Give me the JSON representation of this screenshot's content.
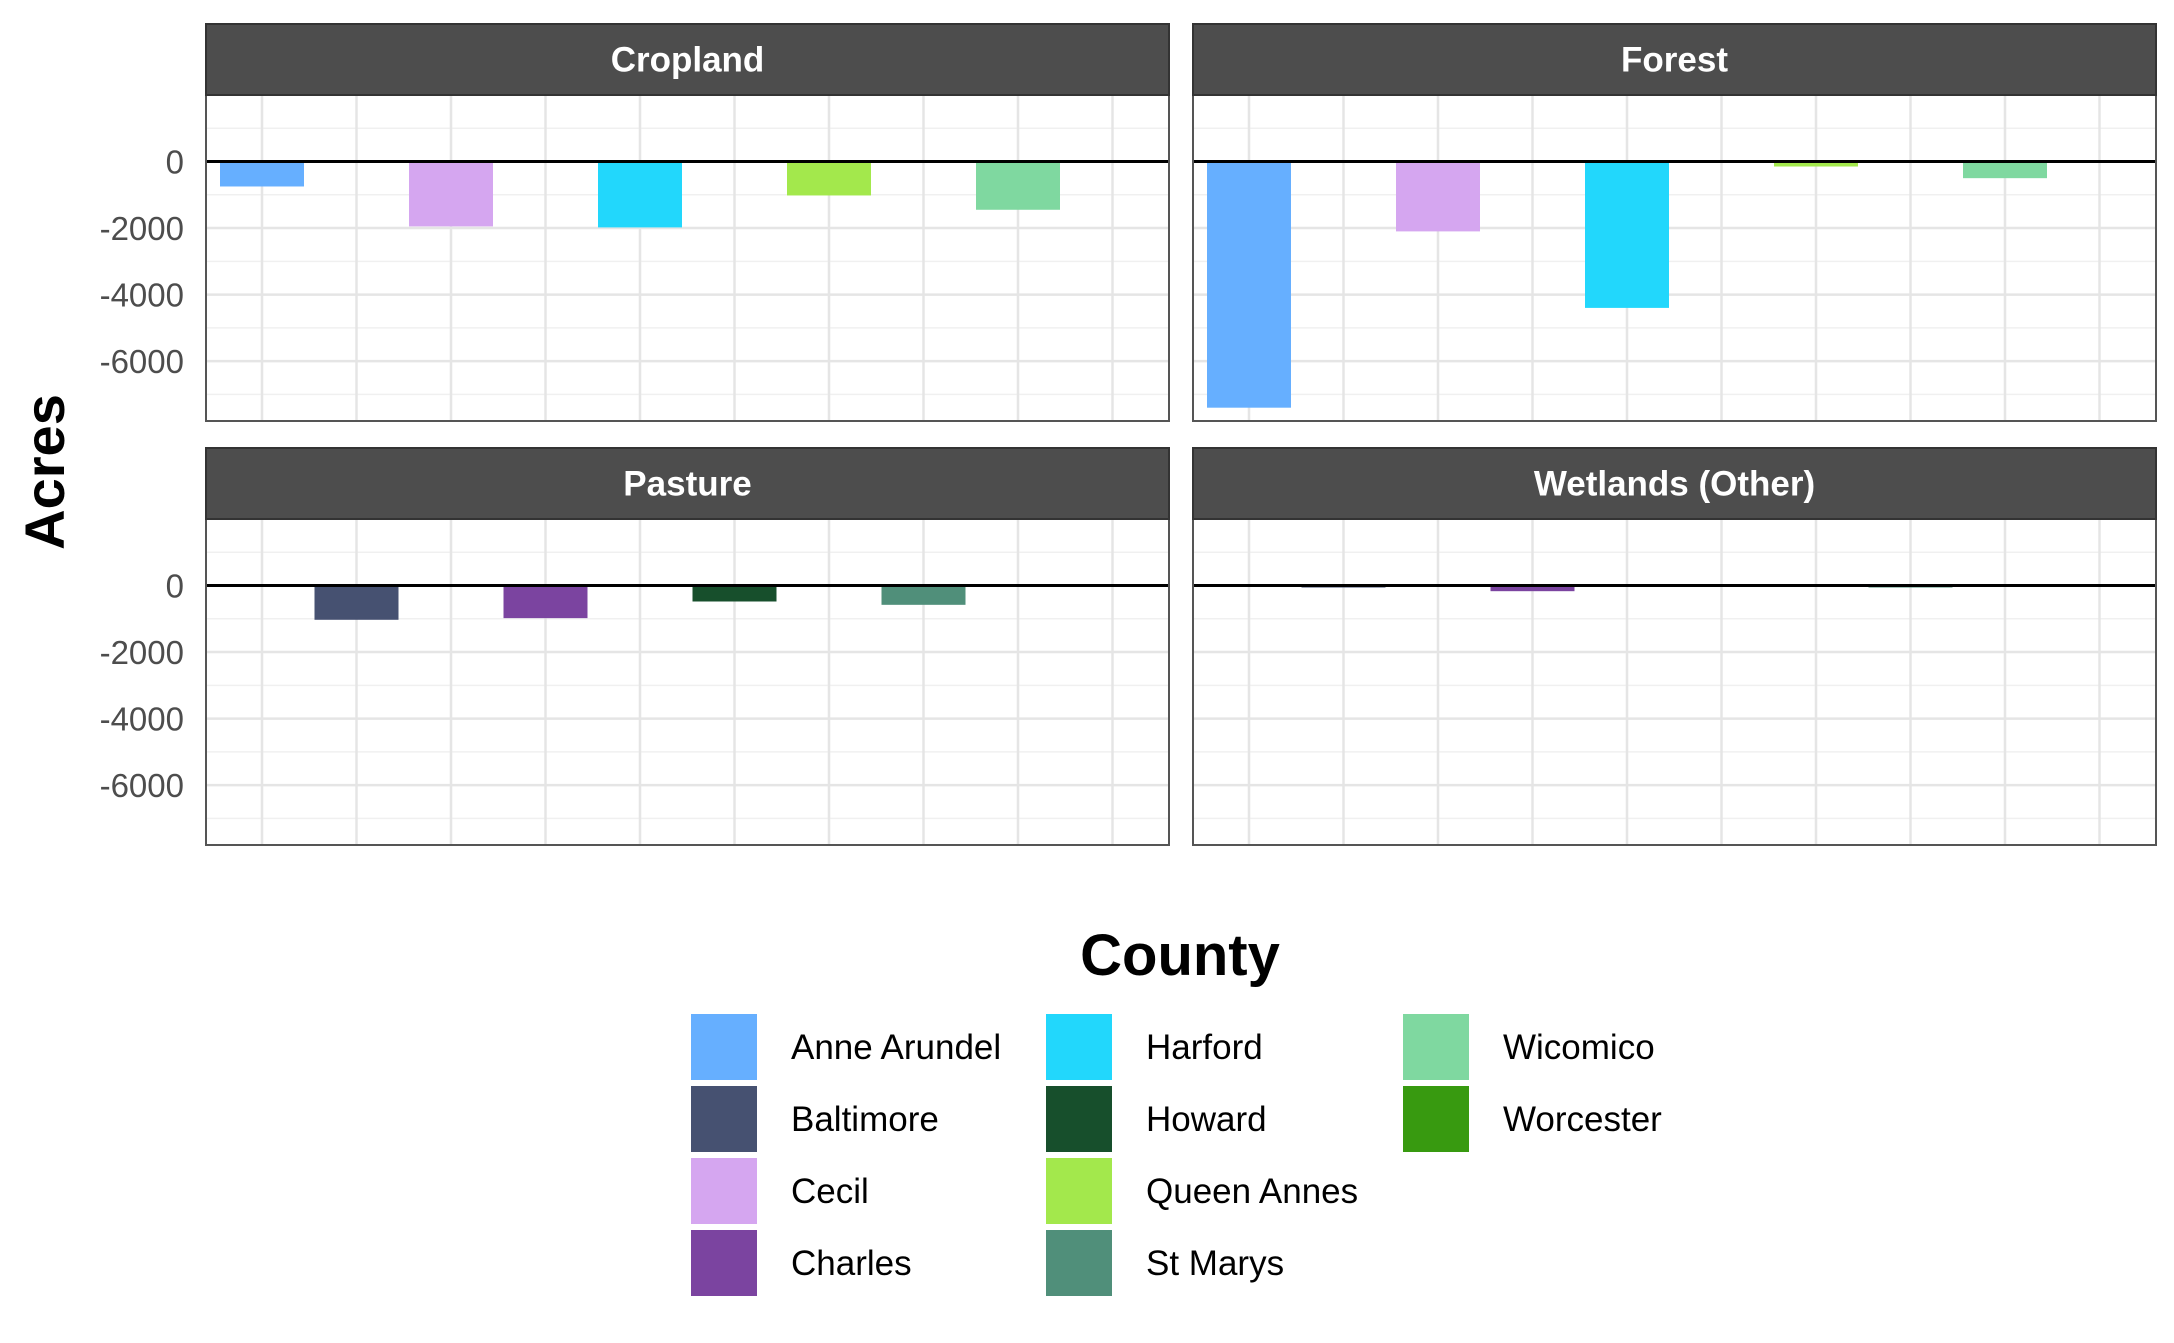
{
  "chart_data": {
    "type": "bar",
    "ylabel": "Acres",
    "ylim": [
      -7800,
      2000
    ],
    "y_ticks": [
      0,
      -2000,
      -4000,
      -6000
    ],
    "y_tick_labels": [
      "0",
      "-2000",
      "-4000",
      "-6000"
    ],
    "grid": true,
    "reference_line": 0,
    "legend_position": "bottom",
    "legend": {
      "title": "County",
      "entries": [
        {
          "label": "Anne Arundel",
          "color": "#66AFFF"
        },
        {
          "label": "Baltimore",
          "color": "#465171"
        },
        {
          "label": "Cecil",
          "color": "#D5A6F0"
        },
        {
          "label": "Charles",
          "color": "#7B44A0"
        },
        {
          "label": "Harford",
          "color": "#22D7FC"
        },
        {
          "label": "Howard",
          "color": "#174F2C"
        },
        {
          "label": "Queen Annes",
          "color": "#A3E84C"
        },
        {
          "label": "St Marys",
          "color": "#508F7A"
        },
        {
          "label": "Wicomico",
          "color": "#7FD8A0"
        },
        {
          "label": "Worcester",
          "color": "#389A10"
        }
      ]
    },
    "categories": [
      "Anne Arundel",
      "Baltimore",
      "Cecil",
      "Charles",
      "Harford",
      "Howard",
      "Queen Annes",
      "St Marys",
      "Wicomico",
      "Worcester"
    ],
    "panels": [
      {
        "title": "Cropland",
        "values": [
          -750,
          null,
          -1950,
          null,
          -1980,
          null,
          -1020,
          null,
          -1450,
          null
        ]
      },
      {
        "title": "Forest",
        "values": [
          -7400,
          null,
          -2100,
          null,
          -4400,
          null,
          -150,
          null,
          -500,
          null
        ]
      },
      {
        "title": "Pasture",
        "values": [
          null,
          -1030,
          null,
          -980,
          null,
          -480,
          null,
          -580,
          null,
          null
        ]
      },
      {
        "title": "Wetlands (Other)",
        "values": [
          null,
          -50,
          null,
          -170,
          null,
          null,
          null,
          -60,
          null,
          null
        ]
      }
    ]
  }
}
